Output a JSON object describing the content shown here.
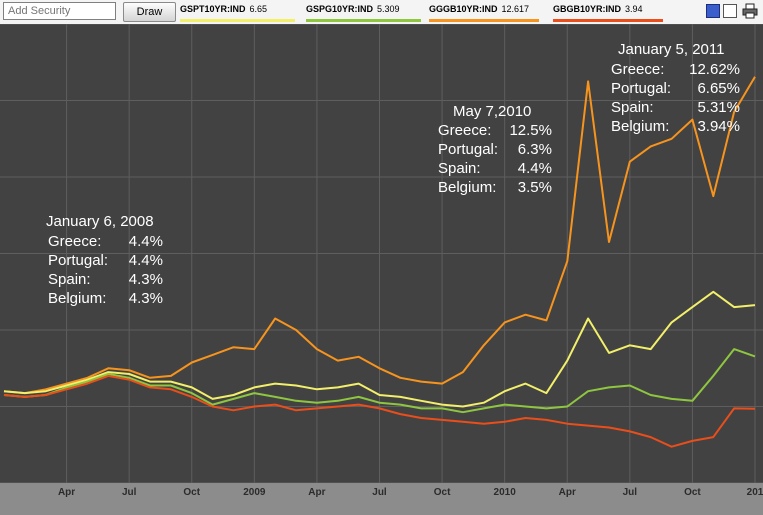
{
  "toolbar": {
    "add_security_placeholder": "Add Security",
    "draw_label": "Draw",
    "tickers": [
      {
        "symbol": "GSPT10YR:IND",
        "value": "6.65",
        "color": "#f2ef6a"
      },
      {
        "symbol": "GSPG10YR:IND",
        "value": "5.309",
        "color": "#8ec63f"
      },
      {
        "symbol": "GGGB10YR:IND",
        "value": "12.617",
        "color": "#f7941d"
      },
      {
        "symbol": "GBGB10YR:IND",
        "value": "3.94",
        "color": "#e94e1b"
      }
    ],
    "icons": [
      "blue-square-icon",
      "white-square-icon",
      "printer-icon"
    ]
  },
  "chart_data": {
    "type": "line",
    "x_tick_labels": [
      "Apr",
      "Jul",
      "Oct",
      "2009",
      "Apr",
      "Jul",
      "Oct",
      "2010",
      "Apr",
      "Jul",
      "Oct",
      "201"
    ],
    "xlim": [
      "2008-01",
      "2011-01"
    ],
    "series": [
      {
        "id": "greece",
        "color": "#f7941d",
        "points": [
          [
            "2008-01",
            4.4
          ],
          [
            "2008-02",
            4.35
          ],
          [
            "2008-03",
            4.45
          ],
          [
            "2008-04",
            4.6
          ],
          [
            "2008-05",
            4.75
          ],
          [
            "2008-06",
            5.0
          ],
          [
            "2008-07",
            4.95
          ],
          [
            "2008-08",
            4.75
          ],
          [
            "2008-09",
            4.8
          ],
          [
            "2008-10",
            5.15
          ],
          [
            "2008-11",
            5.35
          ],
          [
            "2008-12",
            5.55
          ],
          [
            "2009-01",
            5.5
          ],
          [
            "2009-02",
            6.3
          ],
          [
            "2009-03",
            6.0
          ],
          [
            "2009-04",
            5.5
          ],
          [
            "2009-05",
            5.2
          ],
          [
            "2009-06",
            5.3
          ],
          [
            "2009-07",
            5.0
          ],
          [
            "2009-08",
            4.75
          ],
          [
            "2009-09",
            4.65
          ],
          [
            "2009-10",
            4.6
          ],
          [
            "2009-11",
            4.9
          ],
          [
            "2009-12",
            5.6
          ],
          [
            "2010-01",
            6.2
          ],
          [
            "2010-02",
            6.4
          ],
          [
            "2010-03",
            6.25
          ],
          [
            "2010-04",
            7.8
          ],
          [
            "2010-05",
            12.5
          ],
          [
            "2010-06",
            8.3
          ],
          [
            "2010-07",
            10.4
          ],
          [
            "2010-08",
            10.8
          ],
          [
            "2010-09",
            11.0
          ],
          [
            "2010-10",
            11.5
          ],
          [
            "2010-11",
            9.5
          ],
          [
            "2010-12",
            11.7
          ],
          [
            "2011-01",
            12.62
          ]
        ]
      },
      {
        "id": "portugal",
        "color": "#f2ef6a",
        "points": [
          [
            "2008-01",
            4.4
          ],
          [
            "2008-02",
            4.35
          ],
          [
            "2008-03",
            4.4
          ],
          [
            "2008-04",
            4.55
          ],
          [
            "2008-05",
            4.7
          ],
          [
            "2008-06",
            4.9
          ],
          [
            "2008-07",
            4.85
          ],
          [
            "2008-08",
            4.65
          ],
          [
            "2008-09",
            4.65
          ],
          [
            "2008-10",
            4.5
          ],
          [
            "2008-11",
            4.2
          ],
          [
            "2008-12",
            4.3
          ],
          [
            "2009-01",
            4.5
          ],
          [
            "2009-02",
            4.6
          ],
          [
            "2009-03",
            4.55
          ],
          [
            "2009-04",
            4.45
          ],
          [
            "2009-05",
            4.5
          ],
          [
            "2009-06",
            4.6
          ],
          [
            "2009-07",
            4.3
          ],
          [
            "2009-08",
            4.25
          ],
          [
            "2009-09",
            4.15
          ],
          [
            "2009-10",
            4.05
          ],
          [
            "2009-11",
            4.0
          ],
          [
            "2009-12",
            4.1
          ],
          [
            "2010-01",
            4.4
          ],
          [
            "2010-02",
            4.6
          ],
          [
            "2010-03",
            4.35
          ],
          [
            "2010-04",
            5.2
          ],
          [
            "2010-05",
            6.3
          ],
          [
            "2010-06",
            5.4
          ],
          [
            "2010-07",
            5.6
          ],
          [
            "2010-08",
            5.5
          ],
          [
            "2010-09",
            6.2
          ],
          [
            "2010-10",
            6.6
          ],
          [
            "2010-11",
            7.0
          ],
          [
            "2010-12",
            6.6
          ],
          [
            "2011-01",
            6.65
          ]
        ]
      },
      {
        "id": "spain",
        "color": "#8ec63f",
        "points": [
          [
            "2008-01",
            4.3
          ],
          [
            "2008-02",
            4.25
          ],
          [
            "2008-03",
            4.3
          ],
          [
            "2008-04",
            4.5
          ],
          [
            "2008-05",
            4.65
          ],
          [
            "2008-06",
            4.85
          ],
          [
            "2008-07",
            4.75
          ],
          [
            "2008-08",
            4.55
          ],
          [
            "2008-09",
            4.55
          ],
          [
            "2008-10",
            4.35
          ],
          [
            "2008-11",
            4.05
          ],
          [
            "2008-12",
            4.2
          ],
          [
            "2009-01",
            4.35
          ],
          [
            "2009-02",
            4.25
          ],
          [
            "2009-03",
            4.15
          ],
          [
            "2009-04",
            4.1
          ],
          [
            "2009-05",
            4.15
          ],
          [
            "2009-06",
            4.25
          ],
          [
            "2009-07",
            4.1
          ],
          [
            "2009-08",
            4.05
          ],
          [
            "2009-09",
            3.95
          ],
          [
            "2009-10",
            3.95
          ],
          [
            "2009-11",
            3.85
          ],
          [
            "2009-12",
            3.95
          ],
          [
            "2010-01",
            4.05
          ],
          [
            "2010-02",
            4.0
          ],
          [
            "2010-03",
            3.95
          ],
          [
            "2010-04",
            4.0
          ],
          [
            "2010-05",
            4.4
          ],
          [
            "2010-06",
            4.5
          ],
          [
            "2010-07",
            4.55
          ],
          [
            "2010-08",
            4.3
          ],
          [
            "2010-09",
            4.2
          ],
          [
            "2010-10",
            4.15
          ],
          [
            "2010-11",
            4.8
          ],
          [
            "2010-12",
            5.5
          ],
          [
            "2011-01",
            5.31
          ]
        ]
      },
      {
        "id": "belgium",
        "color": "#e94e1b",
        "points": [
          [
            "2008-01",
            4.3
          ],
          [
            "2008-02",
            4.25
          ],
          [
            "2008-03",
            4.3
          ],
          [
            "2008-04",
            4.45
          ],
          [
            "2008-05",
            4.6
          ],
          [
            "2008-06",
            4.8
          ],
          [
            "2008-07",
            4.7
          ],
          [
            "2008-08",
            4.5
          ],
          [
            "2008-09",
            4.45
          ],
          [
            "2008-10",
            4.25
          ],
          [
            "2008-11",
            4.0
          ],
          [
            "2008-12",
            3.9
          ],
          [
            "2009-01",
            4.0
          ],
          [
            "2009-02",
            4.05
          ],
          [
            "2009-03",
            3.9
          ],
          [
            "2009-04",
            3.95
          ],
          [
            "2009-05",
            4.0
          ],
          [
            "2009-06",
            4.05
          ],
          [
            "2009-07",
            3.95
          ],
          [
            "2009-08",
            3.8
          ],
          [
            "2009-09",
            3.7
          ],
          [
            "2009-10",
            3.65
          ],
          [
            "2009-11",
            3.6
          ],
          [
            "2009-12",
            3.55
          ],
          [
            "2010-01",
            3.6
          ],
          [
            "2010-02",
            3.7
          ],
          [
            "2010-03",
            3.65
          ],
          [
            "2010-04",
            3.55
          ],
          [
            "2010-05",
            3.5
          ],
          [
            "2010-06",
            3.45
          ],
          [
            "2010-07",
            3.35
          ],
          [
            "2010-08",
            3.2
          ],
          [
            "2010-09",
            2.95
          ],
          [
            "2010-10",
            3.1
          ],
          [
            "2010-11",
            3.2
          ],
          [
            "2010-12",
            3.95
          ],
          [
            "2011-01",
            3.94
          ]
        ]
      }
    ],
    "annotations": [
      {
        "date": "January 6, 2008",
        "rows": [
          {
            "country": "Greece:",
            "value": "4.4%"
          },
          {
            "country": "Portugal:",
            "value": "4.4%"
          },
          {
            "country": "Spain:",
            "value": "4.3%"
          },
          {
            "country": "Belgium:",
            "value": "4.3%"
          }
        ]
      },
      {
        "date": "May 7,2010",
        "rows": [
          {
            "country": "Greece:",
            "value": "12.5%"
          },
          {
            "country": "Portugal:",
            "value": "6.3%"
          },
          {
            "country": "Spain:",
            "value": "4.4%"
          },
          {
            "country": "Belgium:",
            "value": "3.5%"
          }
        ]
      },
      {
        "date": "January 5, 2011",
        "rows": [
          {
            "country": "Greece:",
            "value": "12.62%"
          },
          {
            "country": "Portugal:",
            "value": "6.65%"
          },
          {
            "country": "Spain:",
            "value": "5.31%"
          },
          {
            "country": "Belgium:",
            "value": "3.94%"
          }
        ]
      }
    ],
    "ylim": [
      2,
      14
    ],
    "grid": true,
    "colors": {
      "background": "#424242",
      "grid": "#5e5e5e",
      "axis_band": "#8c8c8c",
      "text": "#ffffff"
    }
  }
}
